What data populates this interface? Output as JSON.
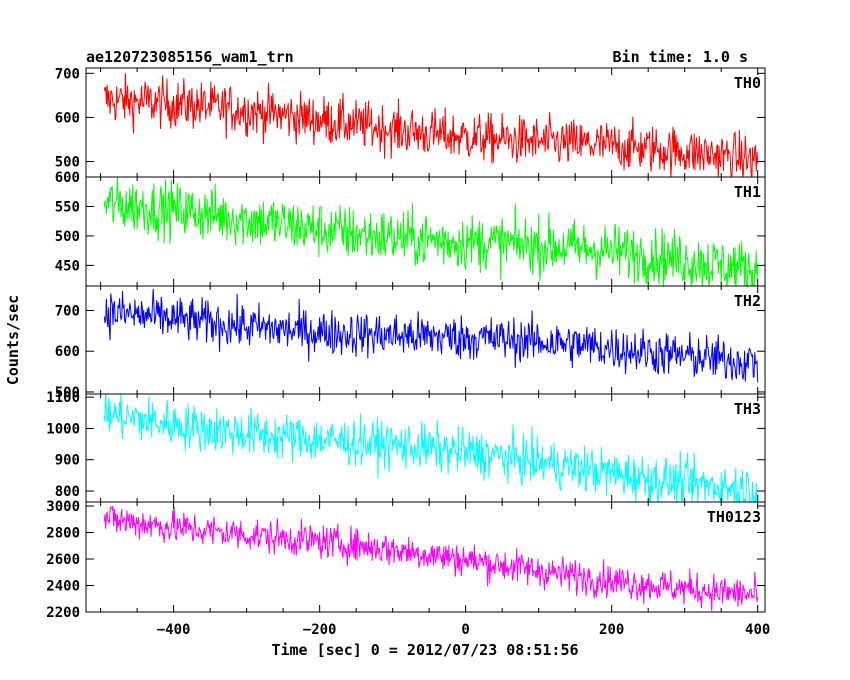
{
  "header": {
    "title": "ae120723085156_wam1_trn",
    "bin_time": "Bin time: 1.0 s"
  },
  "chart_data": {
    "type": "line",
    "xlabel": "Time [sec] 0 = 2012/07/23 08:51:56",
    "ylabel": "Counts/sec",
    "xlim": [
      -520,
      410
    ],
    "x_start": -495,
    "x_end": 400,
    "x_ticks": [
      -400,
      -200,
      0,
      200,
      400
    ],
    "x_tick_labels": [
      "−400",
      "−200",
      "0",
      "200",
      "400"
    ],
    "panels": [
      {
        "name": "TH0",
        "color": "#ff0000",
        "ylim": [
          465,
          712
        ],
        "y_ticks": [
          500,
          600,
          700
        ],
        "trend_start": 640,
        "trend_end": 500,
        "noise": 28
      },
      {
        "name": "TH1",
        "color": "#00ff00",
        "ylim": [
          415,
          600
        ],
        "y_ticks": [
          450,
          500,
          550,
          600
        ],
        "trend_start": 550,
        "trend_end": 445,
        "noise": 24
      },
      {
        "name": "TH2",
        "color": "#0000ff",
        "ylim": [
          495,
          760
        ],
        "y_ticks": [
          500,
          600,
          700
        ],
        "trend_start": 690,
        "trend_end": 580,
        "noise": 28
      },
      {
        "name": "TH3",
        "color": "#00ffff",
        "ylim": [
          765,
          1110
        ],
        "y_ticks": [
          800,
          900,
          1000,
          1100
        ],
        "trend_start": 1045,
        "trend_end": 810,
        "noise": 38
      },
      {
        "name": "TH0123",
        "color": "#ff00ff",
        "ylim": [
          2200,
          3030
        ],
        "y_ticks": [
          2200,
          2400,
          2600,
          2800,
          3000
        ],
        "trend_start": 2920,
        "trend_end": 2320,
        "noise": 65
      }
    ]
  }
}
